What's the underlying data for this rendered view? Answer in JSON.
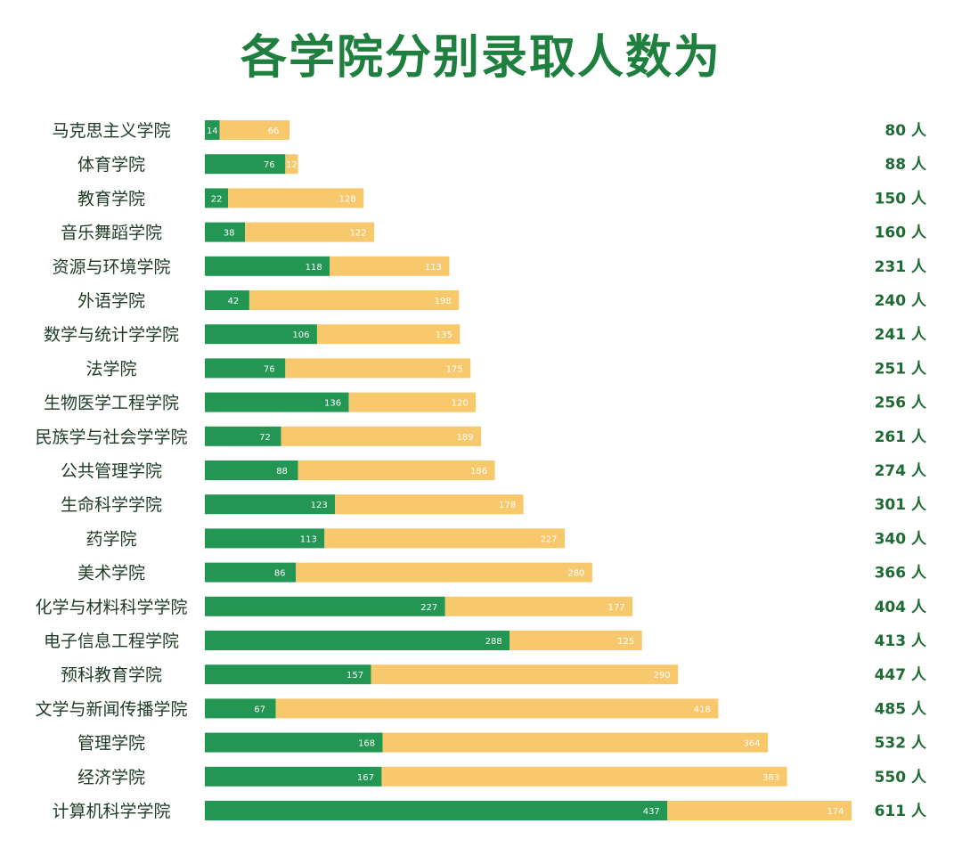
{
  "page": {
    "title": "各学院分别录取人数为"
  },
  "chart_data": {
    "type": "bar",
    "orientation": "horizontal",
    "stacked": true,
    "title": "各学院分别录取人数为",
    "categories": [
      "马克思主义学院",
      "体育学院",
      "教育学院",
      "音乐舞蹈学院",
      "资源与环境学院",
      "外语学院",
      "数学与统计学学院",
      "法学院",
      "生物医学工程学院",
      "民族学与社会学学院",
      "公共管理学院",
      "生命科学学院",
      "药学院",
      "美术学院",
      "化学与材料科学学院",
      "电子信息工程学院",
      "预科教育学院",
      "文学与新闻传播学院",
      "管理学院",
      "经济学院",
      "计算机科学学院"
    ],
    "series": [
      {
        "color": "#239653",
        "values": [
          14,
          76,
          22,
          38,
          118,
          42,
          106,
          76,
          136,
          72,
          88,
          123,
          113,
          86,
          227,
          288,
          157,
          67,
          168,
          167,
          437
        ]
      },
      {
        "color": "#f7c86c",
        "values": [
          66,
          12,
          128,
          122,
          113,
          198,
          135,
          175,
          120,
          189,
          186,
          178,
          227,
          280,
          177,
          125,
          290,
          418,
          364,
          383,
          174
        ]
      }
    ],
    "totals": [
      "80 人",
      "88 人",
      "150 人",
      "160 人",
      "231 人",
      "240 人",
      "241 人",
      "251 人",
      "256 人",
      "261 人",
      "274 人",
      "301 人",
      "340 人",
      "366 人",
      "404 人",
      "413 人",
      "447 人",
      "485 人",
      "532 人",
      "550 人",
      "611 人"
    ],
    "xlim": [
      0,
      611
    ],
    "grid": false,
    "legend": "none"
  }
}
